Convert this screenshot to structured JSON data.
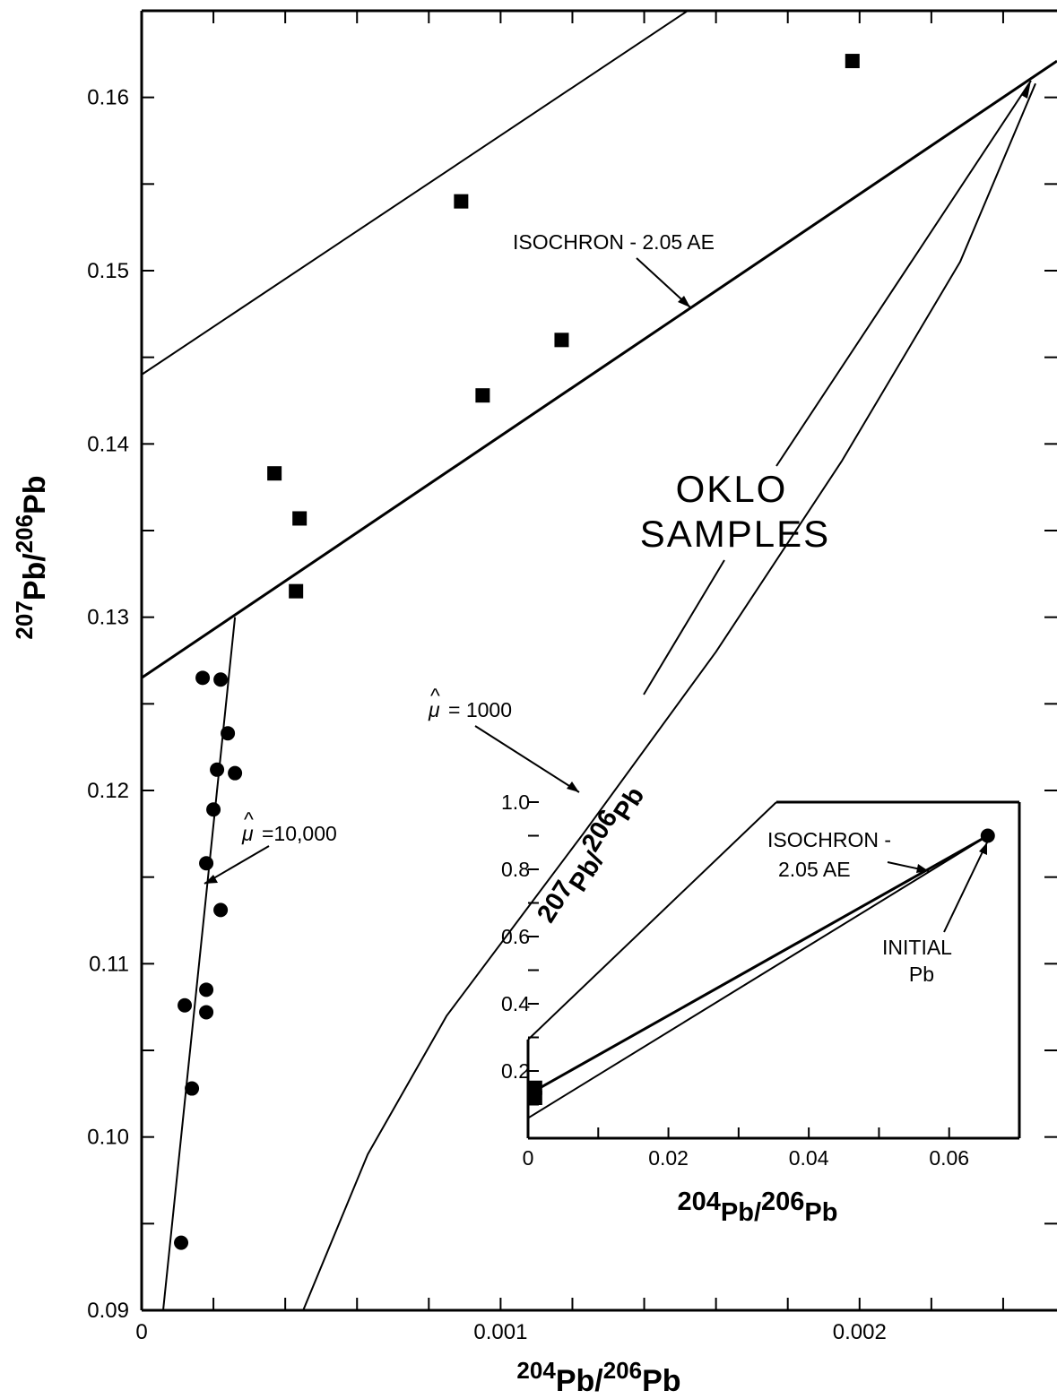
{
  "chart_data": [
    {
      "type": "scatter",
      "xlabel": {
        "pre1": "204",
        "base1": "Pb",
        "sep": "/",
        "pre2": "206",
        "base2": "Pb"
      },
      "ylabel": {
        "pre1": "207",
        "base1": "Pb",
        "sep": "/",
        "pre2": "206",
        "base2": "Pb"
      },
      "xlim": [
        0,
        0.00255
      ],
      "ylim": [
        0.09,
        0.165
      ],
      "x_ticks": [
        {
          "value": 0,
          "label": "0"
        },
        {
          "value": 0.001,
          "label": "0.001"
        },
        {
          "value": 0.002,
          "label": "0.002"
        }
      ],
      "y_ticks": [
        {
          "value": 0.09,
          "label": "0.09"
        },
        {
          "value": 0.1,
          "label": "0.10"
        },
        {
          "value": 0.11,
          "label": "0.11"
        },
        {
          "value": 0.12,
          "label": "0.12"
        },
        {
          "value": 0.13,
          "label": "0.13"
        },
        {
          "value": 0.14,
          "label": "0.14"
        },
        {
          "value": 0.15,
          "label": "0.15"
        },
        {
          "value": 0.16,
          "label": "0.16"
        }
      ],
      "series": [
        {
          "marker": "square",
          "points": [
            {
              "x": 0.00198,
              "y": 0.1621
            },
            {
              "x": 0.00089,
              "y": 0.154
            },
            {
              "x": 0.00117,
              "y": 0.146
            },
            {
              "x": 0.00095,
              "y": 0.1428
            },
            {
              "x": 0.00037,
              "y": 0.1383
            },
            {
              "x": 0.00044,
              "y": 0.1357
            },
            {
              "x": 0.00043,
              "y": 0.1315
            }
          ]
        },
        {
          "marker": "circle",
          "points": [
            {
              "x": 0.00017,
              "y": 0.1265
            },
            {
              "x": 0.00022,
              "y": 0.1264
            },
            {
              "x": 0.00024,
              "y": 0.1233
            },
            {
              "x": 0.00021,
              "y": 0.1212
            },
            {
              "x": 0.00026,
              "y": 0.121
            },
            {
              "x": 0.0002,
              "y": 0.1189
            },
            {
              "x": 0.00018,
              "y": 0.1158
            },
            {
              "x": 0.00022,
              "y": 0.1131
            },
            {
              "x": 0.00012,
              "y": 0.1076
            },
            {
              "x": 0.00018,
              "y": 0.1085
            },
            {
              "x": 0.00018,
              "y": 0.1072
            },
            {
              "x": 0.00014,
              "y": 0.1028
            },
            {
              "x": 0.00011,
              "y": 0.0939
            }
          ]
        }
      ],
      "lines": [
        {
          "name": "upper band",
          "x": [
            0,
            0.00155
          ],
          "y": [
            0.144,
            0.1654
          ]
        },
        {
          "name": "isochron",
          "x": [
            0,
            0.00255
          ],
          "y": [
            0.1265,
            0.1621
          ]
        },
        {
          "name": "mu 10000",
          "x": [
            6e-05,
            0.00026
          ],
          "y": [
            0.09,
            0.13
          ]
        },
        {
          "name": "mu 1000",
          "x": [
            0.00045,
            0.00063,
            0.00085,
            0.00123,
            0.0016,
            0.00195,
            0.00228,
            0.00249
          ],
          "y": [
            0.09,
            0.099,
            0.107,
            0.1175,
            0.128,
            0.139,
            0.1505,
            0.1608
          ]
        }
      ],
      "annotations": {
        "isochron": "ISOCHRON - 2.05 AE",
        "mu_1000": "= 1000",
        "mu_10000": "=10,000",
        "mu_symbol": "μ",
        "oklo_line1": "OKLO",
        "oklo_line2": "SAMPLES"
      }
    },
    {
      "type": "line",
      "xlabel": {
        "pre1": "204",
        "base1": "Pb",
        "sep": "/",
        "pre2": "206",
        "base2": "Pb"
      },
      "ylabel": {
        "pre1": "207",
        "base1": "Pb",
        "sep": "/",
        "pre2": "206",
        "base2": "Pb"
      },
      "xlim": [
        0,
        0.07
      ],
      "ylim": [
        0,
        1.0
      ],
      "x_ticks": [
        {
          "value": 0,
          "label": "0"
        },
        {
          "value": 0.02,
          "label": "0.02"
        },
        {
          "value": 0.04,
          "label": "0.04"
        },
        {
          "value": 0.06,
          "label": "0.06"
        }
      ],
      "y_ticks": [
        {
          "value": 0.2,
          "label": "0.2"
        },
        {
          "value": 0.4,
          "label": "0.4"
        },
        {
          "value": 0.6,
          "label": "0.6"
        },
        {
          "value": 0.8,
          "label": "0.8"
        },
        {
          "value": 1.0,
          "label": "1.0"
        }
      ],
      "lines": [
        {
          "name": "isochron",
          "x": [
            0,
            0.0655
          ],
          "y": [
            0.13,
            0.9
          ]
        },
        {
          "name": "lower",
          "x": [
            0,
            0.0655
          ],
          "y": [
            0.06,
            0.9
          ]
        }
      ],
      "series": [
        {
          "marker": "circle",
          "points": [
            {
              "x": 0.0655,
              "y": 0.9
            }
          ]
        },
        {
          "marker": "square",
          "points": [
            {
              "x": 0.001,
              "y": 0.15
            },
            {
              "x": 0.001,
              "y": 0.12
            }
          ]
        }
      ],
      "annotations": {
        "isochron_line1": "ISOCHRON -",
        "isochron_line2": "2.05 AE",
        "initial_line1": "INITIAL",
        "initial_line2": "Pb"
      }
    }
  ]
}
